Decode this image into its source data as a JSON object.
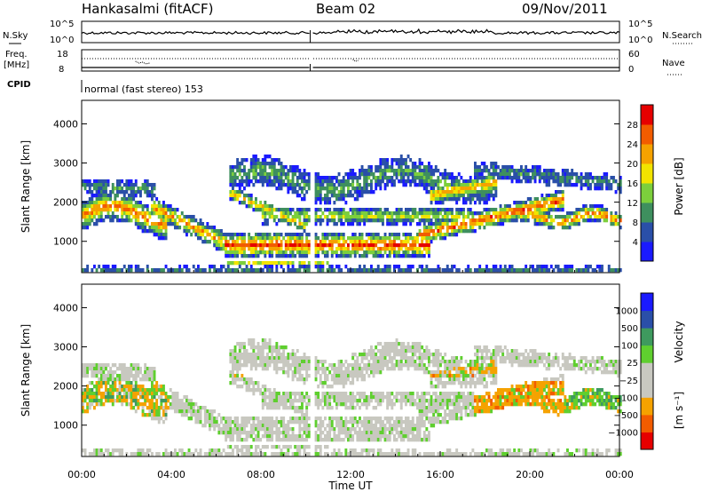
{
  "header": {
    "station": "Hankasalmi (fitACF)",
    "beam": "Beam 02",
    "date": "09/Nov/2011"
  },
  "top_panels": {
    "nsky_label": "N.Sky",
    "nsearch_label": "N.Search",
    "noise_ticks_left": [
      "10^5",
      "10^0"
    ],
    "noise_ticks_right": [
      "10^5",
      "10^0"
    ],
    "freq_label": "Freq.",
    "freq_unit": "[MHz]",
    "freq_ticks": [
      "18",
      "8"
    ],
    "nave_label": "Nave",
    "nave_ticks": [
      "60",
      "0"
    ],
    "cpid_label": "CPID",
    "mode_text": "normal (fast stereo) 153"
  },
  "chart_data": [
    {
      "type": "heatmap",
      "name": "power-panel",
      "ylabel": "Slant Range [km]",
      "ylim": [
        200,
        4600
      ],
      "yticks": [
        "1000",
        "2000",
        "3000",
        "4000"
      ],
      "x_range_hours": [
        0,
        24
      ],
      "colorbar": {
        "label": "Power [dB]",
        "ticks": [
          "4",
          "8",
          "12",
          "16",
          "20",
          "24",
          "28"
        ],
        "colors": [
          "#1a1aff",
          "#2a4fa8",
          "#3e8f5e",
          "#7ccf3c",
          "#f2e400",
          "#f5a200",
          "#f25c00",
          "#e60000"
        ]
      }
    },
    {
      "type": "heatmap",
      "name": "velocity-panel",
      "ylabel": "Slant Range [km]",
      "ylim": [
        200,
        4600
      ],
      "yticks": [
        "1000",
        "2000",
        "3000",
        "4000"
      ],
      "x_range_hours": [
        0,
        24
      ],
      "colorbar": {
        "label": "Velocity",
        "unit": "[m s⁻¹]",
        "ticks": [
          "1000",
          "500",
          "100",
          "25",
          "−25",
          "−100",
          "−500",
          "−1000"
        ],
        "colors": [
          "#e60000",
          "#f25c00",
          "#f5a200",
          "#c8c8c0",
          "#c8c8c0",
          "#5fcf2f",
          "#3e9a5e",
          "#2a4fa8",
          "#1a1aff"
        ]
      }
    }
  ],
  "xaxis": {
    "ticks": [
      "00:00",
      "04:00",
      "08:00",
      "12:00",
      "16:00",
      "20:00",
      "00:00"
    ],
    "label": "Time UT"
  }
}
